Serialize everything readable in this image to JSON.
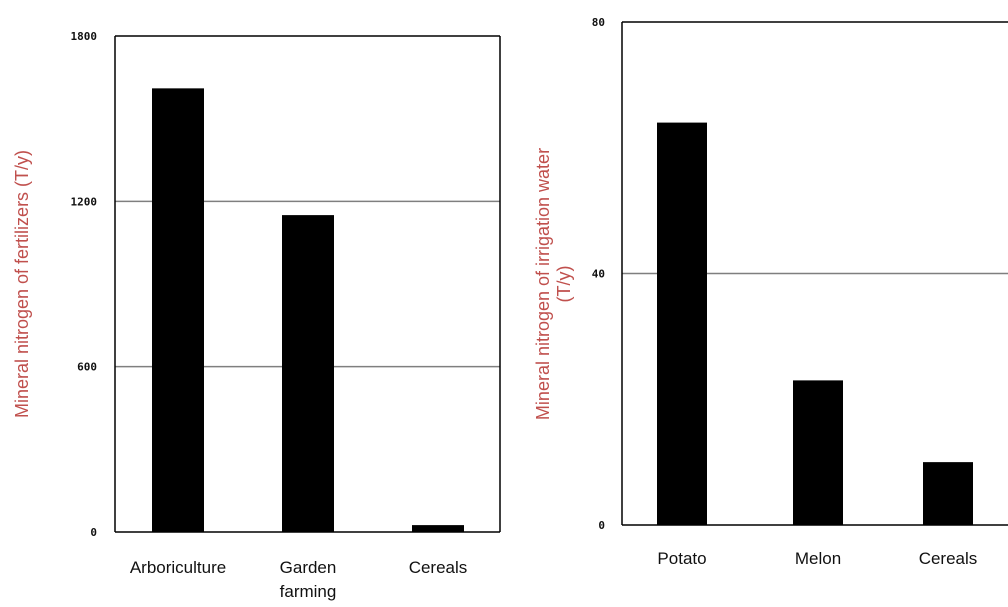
{
  "colors": {
    "bar": "#000000",
    "grid": "#7f7f7f",
    "axis": "#000000",
    "ylabel": "#c0504d"
  },
  "chart_data": [
    {
      "type": "bar",
      "title": "",
      "xlabel": "",
      "ylabel": "Mineral nitrogen of fertilizers (T/y)",
      "ylim": [
        0,
        1800
      ],
      "yticks": [
        0,
        600,
        1200,
        1800
      ],
      "grid": true,
      "categories": [
        "Arboriculture",
        "Garden farming",
        "Cereals"
      ],
      "category_lines": [
        [
          "Arboriculture"
        ],
        [
          "Garden",
          "farming"
        ],
        [
          "Cereals"
        ]
      ],
      "values": [
        1610,
        1150,
        25
      ]
    },
    {
      "type": "bar",
      "title": "",
      "xlabel": "",
      "ylabel": "Mineral nitrogen of irrigation water (T/y)",
      "ylabel_lines": [
        "Mineral nitrogen of irrigation water",
        "(T/y)"
      ],
      "ylim": [
        0,
        80
      ],
      "yticks": [
        0,
        40,
        80
      ],
      "grid": true,
      "categories": [
        "Potato",
        "Melon",
        "Cereals"
      ],
      "category_lines": [
        [
          "Potato"
        ],
        [
          "Melon"
        ],
        [
          "Cereals"
        ]
      ],
      "values": [
        64,
        23,
        10
      ]
    }
  ]
}
